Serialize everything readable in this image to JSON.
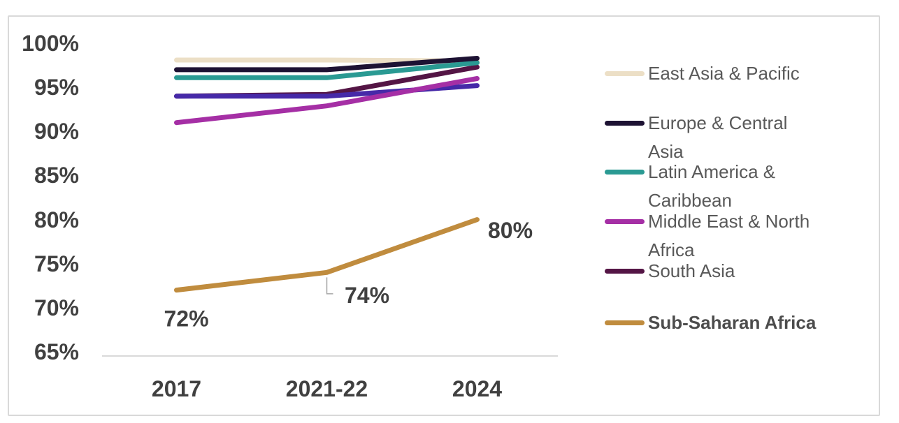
{
  "chart_data": {
    "type": "line",
    "categories": [
      "2017",
      "2021-22",
      "2024"
    ],
    "series": [
      {
        "name": "East Asia & Pacific",
        "color": "#ecdfc6",
        "values": [
          98.1,
          98.1,
          98.0
        ]
      },
      {
        "name": "South Asia",
        "color": "#541545",
        "values": [
          94.0,
          94.2,
          97.3
        ]
      },
      {
        "name": "Latin America & Caribbean",
        "color": "#2a9a93",
        "values": [
          96.1,
          96.1,
          97.8
        ]
      },
      {
        "name": "Europe & Central Asia",
        "color": "#1d1233",
        "values": [
          97.0,
          97.0,
          98.3
        ]
      },
      {
        "name": "",
        "color": "#4629a8",
        "values": [
          94.0,
          94.0,
          95.2
        ],
        "in_legend": false
      },
      {
        "name": "Middle East & North Africa",
        "color": "#a52fa5",
        "values": [
          91.0,
          92.9,
          96.0
        ]
      },
      {
        "name": "Sub-Saharan Africa",
        "color": "#c08c3e",
        "values": [
          72.0,
          74.0,
          80.0
        ],
        "data_labels": [
          "72%",
          "74%",
          "80%"
        ]
      }
    ],
    "y_ticks": [
      "100%",
      "95%",
      "90%",
      "85%",
      "80%",
      "75%",
      "70%",
      "65%"
    ],
    "ylim": [
      65,
      100
    ],
    "grid": false,
    "legend_position": "right"
  },
  "legend": {
    "items": [
      {
        "label": "East Asia & Pacific",
        "color": "#ecdfc6",
        "bold": false
      },
      {
        "label": "Europe & Central Asia",
        "color": "#1d1233",
        "bold": false
      },
      {
        "label": "Latin America & Caribbean",
        "color": "#2a9a93",
        "bold": false
      },
      {
        "label": "Middle East & North Africa",
        "color": "#a52fa5",
        "bold": false
      },
      {
        "label": "South Asia",
        "color": "#541545",
        "bold": false
      },
      {
        "label": "Sub-Saharan Africa",
        "color": "#c08c3e",
        "bold": true
      }
    ]
  },
  "colors": {
    "axis_line": "#d9d9d9",
    "leader_line": "#a6a6a6",
    "axis_text": "#404040",
    "legend_text": "#595959"
  }
}
